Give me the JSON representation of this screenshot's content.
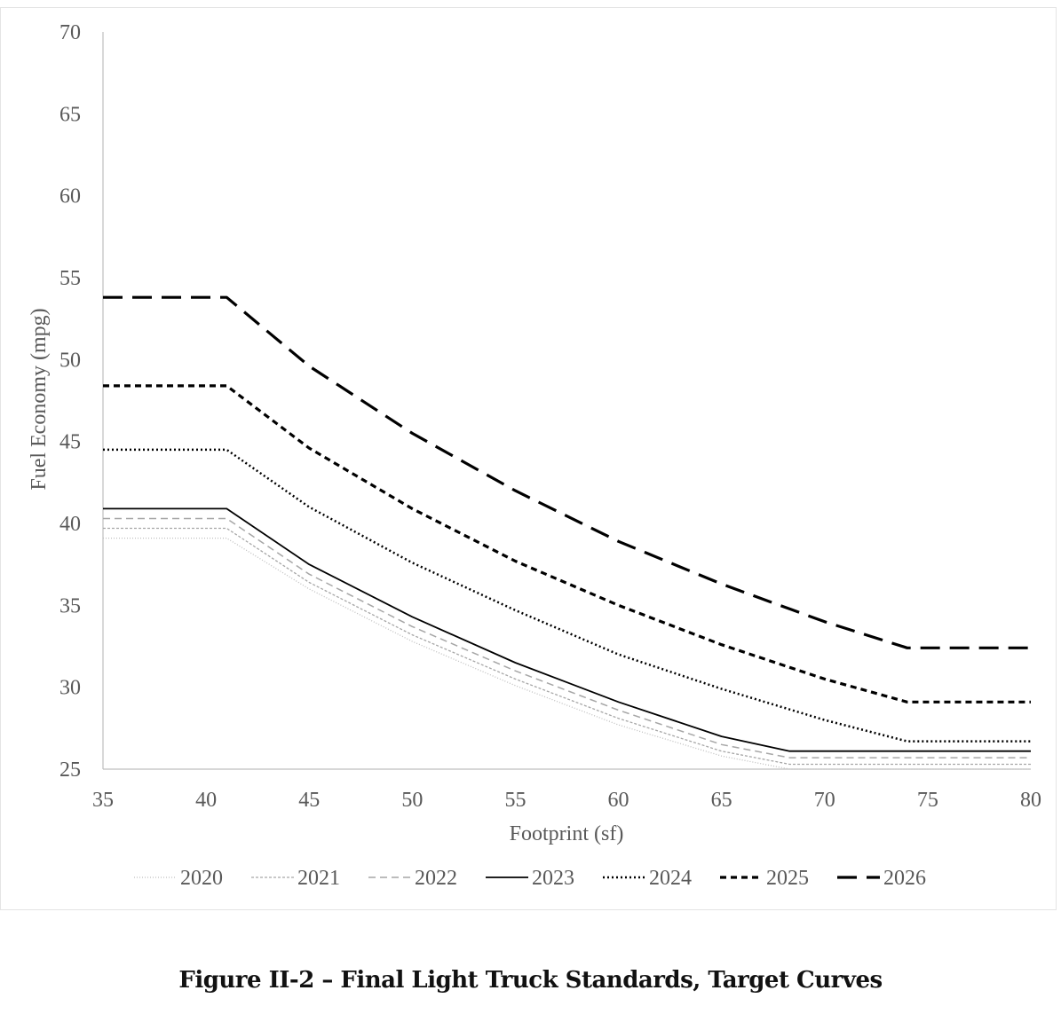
{
  "caption": "Figure II-2 – Final Light Truck Standards, Target Curves",
  "chart_data": {
    "type": "line",
    "title": "",
    "xlabel": "Footprint (sf)",
    "ylabel": "Fuel Economy (mpg)",
    "xlim": [
      35,
      80
    ],
    "ylim": [
      25,
      70
    ],
    "xticks": [
      "35",
      "40",
      "45",
      "50",
      "55",
      "60",
      "65",
      "70",
      "75",
      "80"
    ],
    "yticks": [
      "25",
      "30",
      "35",
      "40",
      "45",
      "50",
      "55",
      "60",
      "65",
      "70"
    ],
    "grid": false,
    "legend_position": "bottom",
    "series": [
      {
        "name": "2020",
        "color": "#bfbfbf",
        "dash": "1,2",
        "width": 1.3,
        "x": [
          35,
          41,
          45,
          50,
          55,
          60,
          65,
          68.3,
          80
        ],
        "y": [
          39.1,
          39.1,
          36.0,
          32.8,
          30.1,
          27.7,
          25.8,
          25.0,
          25.0
        ]
      },
      {
        "name": "2021",
        "color": "#a6a6a6",
        "dash": "3,2",
        "width": 1.3,
        "x": [
          35,
          41,
          45,
          50,
          55,
          60,
          65,
          68.3,
          80
        ],
        "y": [
          39.7,
          39.7,
          36.4,
          33.2,
          30.5,
          28.1,
          26.1,
          25.3,
          25.3
        ]
      },
      {
        "name": "2022",
        "color": "#a6a6a6",
        "dash": "8,5",
        "width": 1.5,
        "x": [
          35,
          41,
          45,
          50,
          55,
          60,
          65,
          68.3,
          80
        ],
        "y": [
          40.3,
          40.3,
          36.9,
          33.7,
          31.0,
          28.6,
          26.5,
          25.7,
          25.7
        ]
      },
      {
        "name": "2023",
        "color": "#000000",
        "dash": "",
        "width": 1.8,
        "x": [
          35,
          41,
          45,
          50,
          55,
          60,
          65,
          68.3,
          80
        ],
        "y": [
          40.9,
          40.9,
          37.5,
          34.3,
          31.5,
          29.1,
          27.0,
          26.1,
          26.1
        ]
      },
      {
        "name": "2024",
        "color": "#000000",
        "dash": "2,3",
        "width": 2.5,
        "x": [
          35,
          41,
          45,
          50,
          55,
          60,
          65,
          70,
          74,
          80
        ],
        "y": [
          44.5,
          44.5,
          41.0,
          37.6,
          34.7,
          32.0,
          29.9,
          28.0,
          26.7,
          26.7
        ]
      },
      {
        "name": "2025",
        "color": "#000000",
        "dash": "7,5",
        "width": 3.2,
        "x": [
          35,
          41,
          45,
          50,
          55,
          60,
          65,
          70,
          74,
          80
        ],
        "y": [
          48.4,
          48.4,
          44.6,
          40.9,
          37.7,
          35.0,
          32.6,
          30.5,
          29.1,
          29.1
        ]
      },
      {
        "name": "2026",
        "color": "#000000",
        "dash": "22,11",
        "width": 3.2,
        "x": [
          35,
          41,
          45,
          50,
          55,
          60,
          65,
          70,
          74,
          80
        ],
        "y": [
          53.8,
          53.8,
          49.6,
          45.5,
          42.0,
          38.9,
          36.3,
          34.0,
          32.4,
          32.4
        ]
      }
    ]
  }
}
